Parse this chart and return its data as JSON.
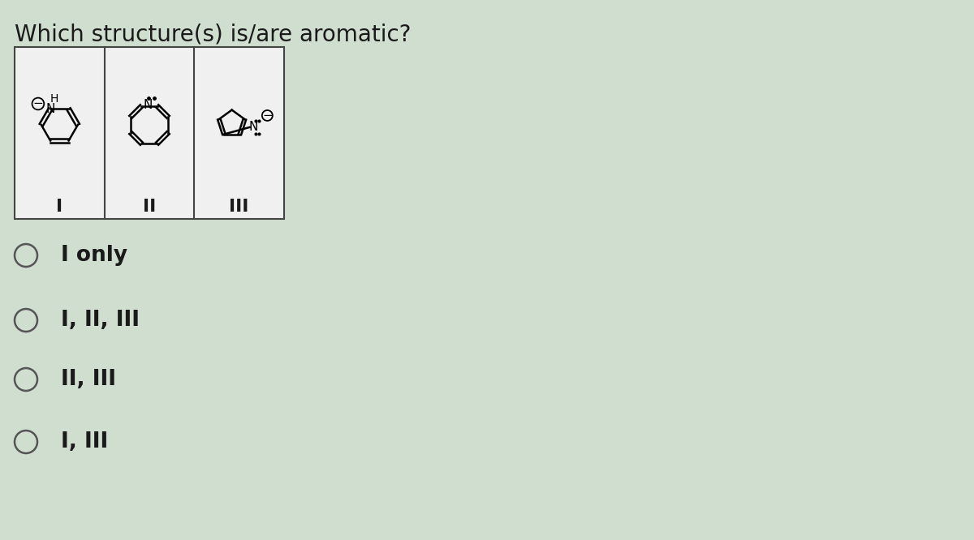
{
  "title": "Which structure(s) is/are aromatic?",
  "title_fontsize": 20,
  "background_color": "#cfdece",
  "text_color": "#1a1a1a",
  "options": [
    "I only",
    "I, II, III",
    "II, III",
    "I, III"
  ],
  "option_fontsize": 19,
  "labels": [
    "I",
    "II",
    "III"
  ],
  "label_fontsize": 16,
  "panel_bg": "#e8e8e8"
}
